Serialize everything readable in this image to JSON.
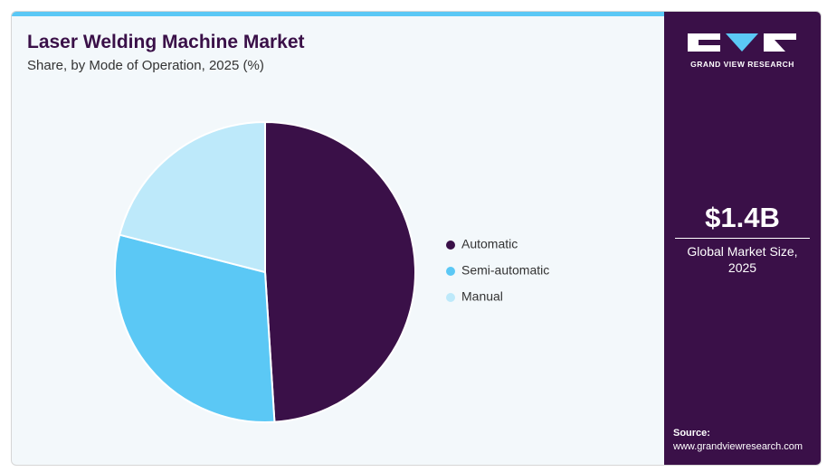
{
  "chart_data": {
    "type": "pie",
    "title": "Laser Welding Machine Market",
    "subtitle": "Share, by Mode of Operation, 2025 (%)",
    "categories": [
      "Automatic",
      "Semi-automatic",
      "Manual"
    ],
    "values": [
      49,
      30,
      21
    ],
    "colors": [
      "#3a1048",
      "#5bc8f5",
      "#bde9fa"
    ]
  },
  "sidebar": {
    "logo_text": "GRAND VIEW RESEARCH",
    "market_size": "$1.4B",
    "market_size_label": "Global Market Size, 2025",
    "source_label": "Source:",
    "source_url": "www.grandviewresearch.com"
  }
}
